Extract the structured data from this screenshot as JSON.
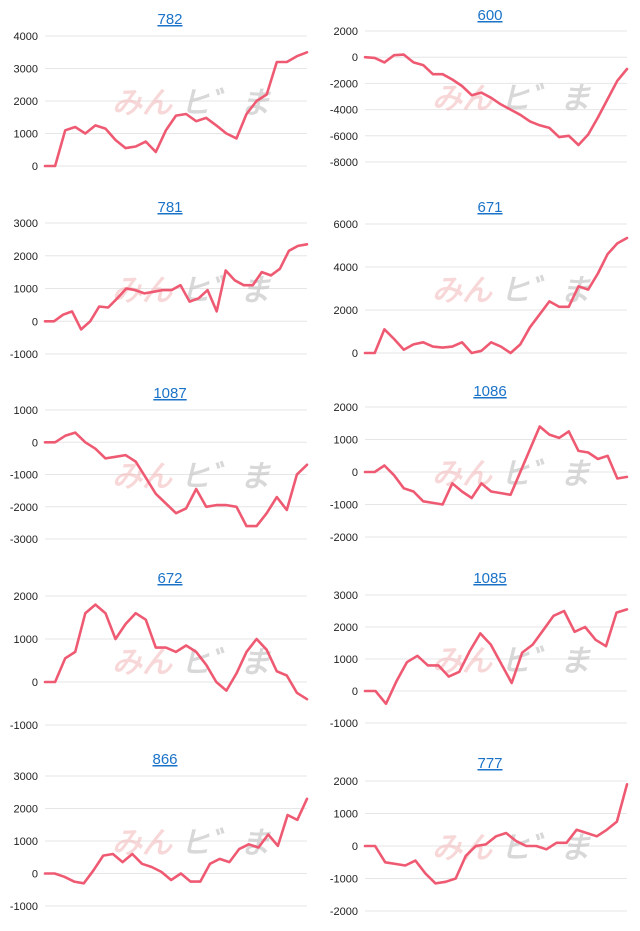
{
  "watermark": {
    "red": "みん",
    "gray": "ヒ゛ま"
  },
  "colors": {
    "series": "#ef5a73",
    "title": "#1a73c8",
    "grid": "#e6e6e6"
  },
  "chart_data": [
    {
      "type": "line",
      "title": "782",
      "ylim": [
        0,
        4000
      ],
      "ticks": [
        0,
        1000,
        2000,
        3000,
        4000
      ],
      "values": [
        0,
        0,
        1100,
        1200,
        1000,
        1250,
        1150,
        800,
        550,
        600,
        750,
        430,
        1100,
        1550,
        1600,
        1380,
        1480,
        1250,
        1000,
        850,
        1600,
        2000,
        2200,
        3200,
        3200,
        3380,
        3500
      ]
    },
    {
      "type": "line",
      "title": "600",
      "ylim": [
        -8000,
        2000
      ],
      "ticks": [
        -8000,
        -6000,
        -4000,
        -2000,
        0,
        2000
      ],
      "values": [
        0,
        -50,
        -400,
        150,
        200,
        -400,
        -600,
        -1300,
        -1300,
        -1700,
        -2200,
        -2900,
        -2700,
        -3100,
        -3600,
        -4000,
        -4400,
        -4900,
        -5200,
        -5400,
        -6100,
        -6000,
        -6700,
        -5900,
        -4600,
        -3200,
        -1800,
        -900
      ]
    },
    {
      "type": "line",
      "title": "781",
      "ylim": [
        -1000,
        3000
      ],
      "ticks": [
        -1000,
        0,
        1000,
        2000,
        3000
      ],
      "values": [
        0,
        0,
        200,
        300,
        -250,
        0,
        450,
        420,
        700,
        1000,
        950,
        850,
        900,
        950,
        950,
        1100,
        600,
        700,
        950,
        300,
        1550,
        1250,
        1100,
        1100,
        1500,
        1400,
        1600,
        2150,
        2300,
        2350
      ]
    },
    {
      "type": "line",
      "title": "671",
      "ylim": [
        0,
        6000
      ],
      "ticks": [
        0,
        2000,
        4000,
        6000
      ],
      "values": [
        0,
        0,
        1100,
        650,
        150,
        400,
        500,
        300,
        250,
        300,
        500,
        0,
        100,
        500,
        300,
        0,
        400,
        1200,
        1800,
        2400,
        2150,
        2150,
        3100,
        2950,
        3700,
        4600,
        5100,
        5350
      ]
    },
    {
      "type": "line",
      "title": "1087",
      "ylim": [
        -3000,
        1000
      ],
      "ticks": [
        -3000,
        -2000,
        -1000,
        0,
        1000
      ],
      "values": [
        0,
        0,
        200,
        300,
        0,
        -200,
        -500,
        -450,
        -400,
        -600,
        -1100,
        -1600,
        -1900,
        -2200,
        -2050,
        -1450,
        -2000,
        -1950,
        -1950,
        -2000,
        -2600,
        -2600,
        -2200,
        -1700,
        -2100,
        -1000,
        -700
      ]
    },
    {
      "type": "line",
      "title": "1086",
      "ylim": [
        -2000,
        2000
      ],
      "ticks": [
        -2000,
        -1000,
        0,
        1000,
        2000
      ],
      "values": [
        0,
        0,
        200,
        -100,
        -500,
        -600,
        -900,
        -950,
        -1000,
        -350,
        -600,
        -800,
        -350,
        -600,
        -650,
        -700,
        0,
        700,
        1400,
        1150,
        1050,
        1250,
        650,
        600,
        400,
        500,
        -200,
        -150
      ]
    },
    {
      "type": "line",
      "title": "672",
      "ylim": [
        -1000,
        2000
      ],
      "ticks": [
        -1000,
        0,
        1000,
        2000
      ],
      "values": [
        0,
        0,
        550,
        700,
        1600,
        1800,
        1600,
        1000,
        1350,
        1600,
        1450,
        800,
        800,
        700,
        850,
        700,
        400,
        0,
        -200,
        200,
        700,
        1000,
        750,
        250,
        150,
        -250,
        -400
      ]
    },
    {
      "type": "line",
      "title": "1085",
      "ylim": [
        -1000,
        3000
      ],
      "ticks": [
        -1000,
        0,
        1000,
        2000,
        3000
      ],
      "values": [
        0,
        0,
        -400,
        300,
        900,
        1100,
        800,
        800,
        450,
        600,
        1250,
        1800,
        1450,
        850,
        250,
        1200,
        1450,
        1900,
        2350,
        2500,
        1850,
        2000,
        1600,
        1400,
        2450,
        2550
      ]
    },
    {
      "type": "line",
      "title": "866",
      "ylim": [
        -1000,
        3000
      ],
      "ticks": [
        -1000,
        0,
        1000,
        2000,
        3000
      ],
      "values": [
        0,
        0,
        -100,
        -250,
        -300,
        100,
        550,
        600,
        350,
        600,
        300,
        200,
        50,
        -200,
        0,
        -250,
        -250,
        300,
        450,
        350,
        750,
        900,
        800,
        1200,
        850,
        1800,
        1650,
        2300
      ]
    },
    {
      "type": "line",
      "title": "777",
      "ylim": [
        -2000,
        2000
      ],
      "ticks": [
        -2000,
        -1000,
        0,
        1000,
        2000
      ],
      "values": [
        0,
        0,
        -500,
        -550,
        -600,
        -450,
        -850,
        -1150,
        -1100,
        -1000,
        -300,
        0,
        50,
        300,
        400,
        150,
        0,
        0,
        -100,
        100,
        100,
        500,
        400,
        300,
        500,
        750,
        1900
      ]
    }
  ]
}
